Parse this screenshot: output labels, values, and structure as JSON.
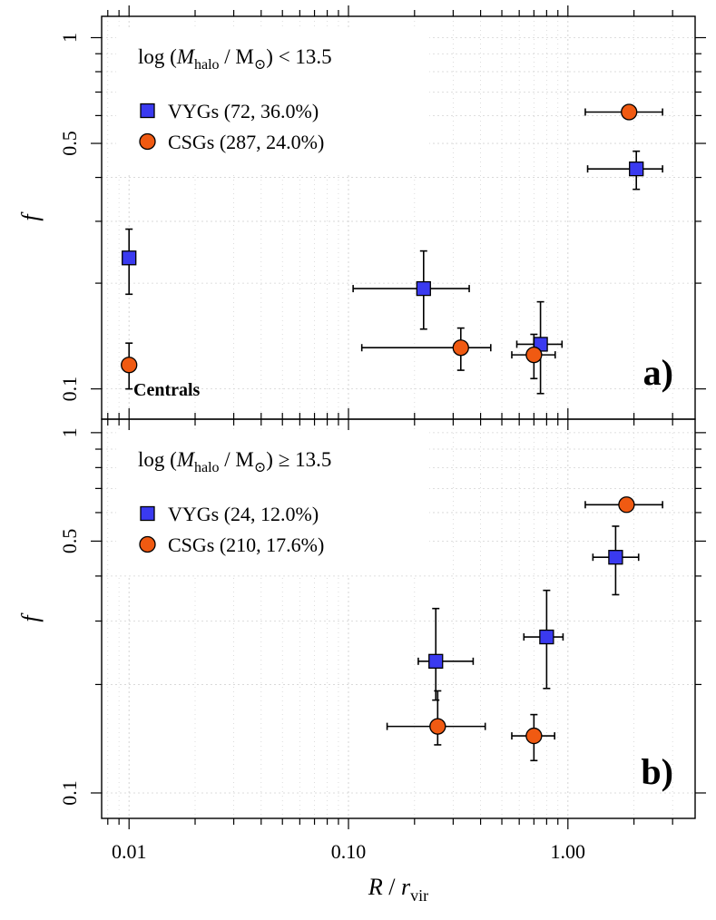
{
  "chart_data": {
    "type": "scatter",
    "x_scale": "log",
    "y_scale": "log",
    "xlim": [
      0.0075,
      3.8
    ],
    "x_tick_values": [
      0.01,
      0.1,
      1.0
    ],
    "x_tick_labels": [
      "0.01",
      "0.10",
      "1.00"
    ],
    "xlabel": {
      "main": "R",
      "sep": " / ",
      "var": "r",
      "sub": "vir"
    },
    "colors": {
      "VYGs": "#3a3af0",
      "CSGs": "#f05a12",
      "grid": "#d4d4d4",
      "white_grid": "#ffffff"
    },
    "panels": [
      {
        "letter": "a)",
        "title": {
          "prefix": "log (",
          "var": "M",
          "sub": "halo",
          "sep": " / M",
          "sun": "⊙",
          "suffix": ") < 13.5"
        },
        "ylabel": "f",
        "ylim": [
          0.082,
          1.15
        ],
        "y_tick_values": [
          0.1,
          0.5,
          1.0
        ],
        "y_tick_labels": [
          "0.1",
          "0.5",
          "1"
        ],
        "annotation": "Centrals",
        "series": [
          {
            "name": "VYGs",
            "marker": "square",
            "legend": "VYGs (72, 36.0%)",
            "points": [
              {
                "x": 0.01,
                "y": 0.236,
                "xerr": null,
                "yerr": [
                  0.186,
                  0.285
                ]
              },
              {
                "x": 0.22,
                "y": 0.193,
                "xerr": [
                  0.105,
                  0.355
                ],
                "yerr": [
                  0.148,
                  0.247
                ]
              },
              {
                "x": 0.75,
                "y": 0.134,
                "xerr": [
                  0.585,
                  0.94
                ],
                "yerr": [
                  0.097,
                  0.177
                ]
              },
              {
                "x": 2.05,
                "y": 0.423,
                "xerr": [
                  1.23,
                  2.7
                ],
                "yerr": [
                  0.37,
                  0.475
                ]
              }
            ]
          },
          {
            "name": "CSGs",
            "marker": "circle",
            "legend": "CSGs (287, 24.0%)",
            "points": [
              {
                "x": 0.01,
                "y": 0.117,
                "xerr": null,
                "yerr": [
                  0.1,
                  0.135
                ]
              },
              {
                "x": 0.325,
                "y": 0.131,
                "xerr": [
                  0.115,
                  0.445
                ],
                "yerr": [
                  0.113,
                  0.149
                ]
              },
              {
                "x": 0.7,
                "y": 0.125,
                "xerr": [
                  0.555,
                  0.875
                ],
                "yerr": [
                  0.107,
                  0.143
                ]
              },
              {
                "x": 1.9,
                "y": 0.614,
                "xerr": [
                  1.2,
                  2.7
                ],
                "yerr": [
                  0.595,
                  0.633
                ]
              }
            ]
          }
        ]
      },
      {
        "letter": "b)",
        "title": {
          "prefix": "log (",
          "var": "M",
          "sub": "halo",
          "sep": " / M",
          "sun": "⊙",
          "suffix": ")  ≥  13.5"
        },
        "ylabel": "f",
        "ylim": [
          0.085,
          1.09
        ],
        "y_tick_values": [
          0.1,
          0.5,
          1.0
        ],
        "y_tick_labels": [
          "0.1",
          "0.5",
          "1"
        ],
        "annotation": "",
        "series": [
          {
            "name": "VYGs",
            "marker": "square",
            "legend": "VYGs (24, 12.0%)",
            "points": [
              {
                "x": 0.25,
                "y": 0.232,
                "xerr": [
                  0.208,
                  0.37
                ],
                "yerr": [
                  0.181,
                  0.325
                ]
              },
              {
                "x": 0.8,
                "y": 0.271,
                "xerr": [
                  0.63,
                  0.95
                ],
                "yerr": [
                  0.195,
                  0.365
                ]
              },
              {
                "x": 1.65,
                "y": 0.451,
                "xerr": [
                  1.3,
                  2.1
                ],
                "yerr": [
                  0.355,
                  0.55
                ]
              }
            ]
          },
          {
            "name": "CSGs",
            "marker": "circle",
            "legend": "CSGs (210, 17.6%)",
            "points": [
              {
                "x": 0.255,
                "y": 0.153,
                "xerr": [
                  0.15,
                  0.42
                ],
                "yerr": [
                  0.136,
                  0.192
                ]
              },
              {
                "x": 0.7,
                "y": 0.144,
                "xerr": [
                  0.555,
                  0.87
                ],
                "yerr": [
                  0.123,
                  0.165
                ]
              },
              {
                "x": 1.85,
                "y": 0.631,
                "xerr": [
                  1.2,
                  2.7
                ],
                "yerr": [
                  0.605,
                  0.655
                ]
              }
            ]
          }
        ]
      }
    ]
  }
}
